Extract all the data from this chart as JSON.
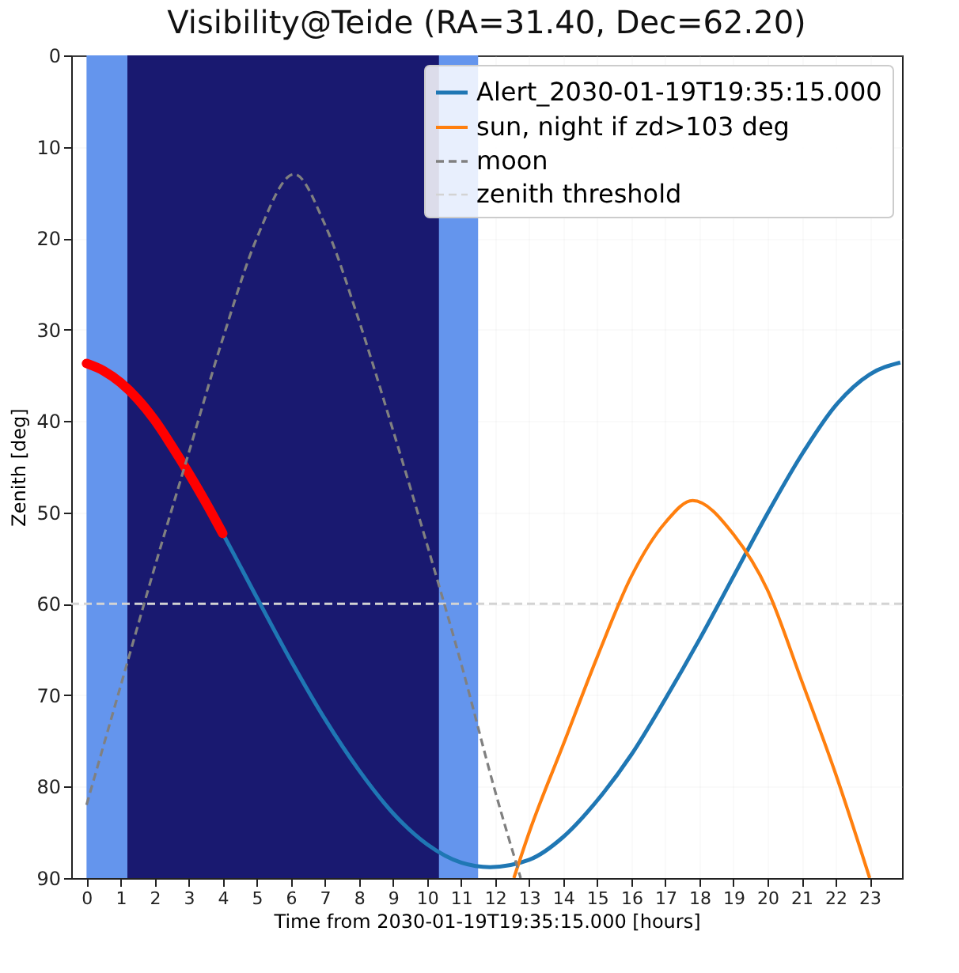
{
  "chart_data": {
    "type": "line",
    "title": "Visibility@Teide (RA=31.40, Dec=62.20)",
    "xlabel": "Time from 2030-01-19T19:35:15.000 [hours]",
    "ylabel": "Zenith [deg]",
    "series": [
      {
        "name": "Alert_2030-01-19T19:35:15.000",
        "color": "#1f77b4",
        "line_style": "solid",
        "x": [
          0,
          1,
          2,
          3,
          4,
          5,
          6,
          7,
          8,
          9,
          10,
          11,
          11.85,
          13,
          14,
          15,
          16,
          17,
          18,
          19,
          20,
          21,
          22,
          23,
          23.9
        ],
        "values": [
          33.7,
          35.8,
          39.9,
          45.7,
          52.3,
          59.3,
          66.2,
          72.6,
          78.2,
          82.9,
          86.3,
          88.3,
          88.8,
          88.0,
          85.5,
          81.5,
          76.5,
          70.4,
          63.9,
          57.0,
          50.1,
          43.7,
          38.3,
          34.9,
          33.6
        ]
      },
      {
        "color": "#ff0000",
        "line_style": "solid",
        "x": [
          0,
          0.5,
          1,
          1.5,
          2,
          2.5,
          3,
          3.5,
          4
        ],
        "values": [
          33.7,
          34.5,
          35.8,
          37.6,
          39.9,
          42.7,
          45.7,
          48.9,
          52.3
        ]
      },
      {
        "name": "sun, night if zd>103 deg",
        "color": "#ff7f0e",
        "line_style": "solid",
        "x": [
          12.55,
          13,
          14,
          15,
          16,
          17,
          17.8,
          19,
          20,
          21,
          22,
          23
        ],
        "values": [
          90,
          85,
          75.4,
          65.8,
          57,
          51.1,
          48.7,
          52.4,
          58.5,
          68.4,
          78.6,
          90
        ]
      },
      {
        "name": "moon",
        "color": "#808080",
        "line_style": "dashed",
        "x": [
          0,
          1,
          2,
          3,
          4,
          5,
          6.1,
          7,
          8,
          9,
          10,
          11,
          12,
          12.75
        ],
        "values": [
          82,
          69,
          56,
          43.5,
          31,
          20,
          13,
          18.5,
          29,
          41,
          53.5,
          66.5,
          80.5,
          90
        ]
      }
    ],
    "bands": [
      {
        "axis": "x",
        "from": 0,
        "to": 11.5,
        "color": "#6495ed"
      },
      {
        "axis": "x",
        "from": 1.2,
        "to": 10.35,
        "color": "#191970"
      }
    ],
    "ref_lines": [
      {
        "axis": "y",
        "value": 60,
        "label": "zenith threshold",
        "color": "#d3d3d3",
        "line_style": "dashed"
      }
    ],
    "xlim": [
      -0.45,
      23.95
    ],
    "ylim": [
      90,
      0
    ],
    "xticks": [
      0,
      1,
      2,
      3,
      4,
      5,
      6,
      7,
      8,
      9,
      10,
      11,
      12,
      13,
      14,
      15,
      16,
      17,
      18,
      19,
      20,
      21,
      22,
      23
    ],
    "yticks": [
      0,
      10,
      20,
      30,
      40,
      50,
      60,
      70,
      80,
      90
    ],
    "grid": true,
    "legend": "top right"
  }
}
